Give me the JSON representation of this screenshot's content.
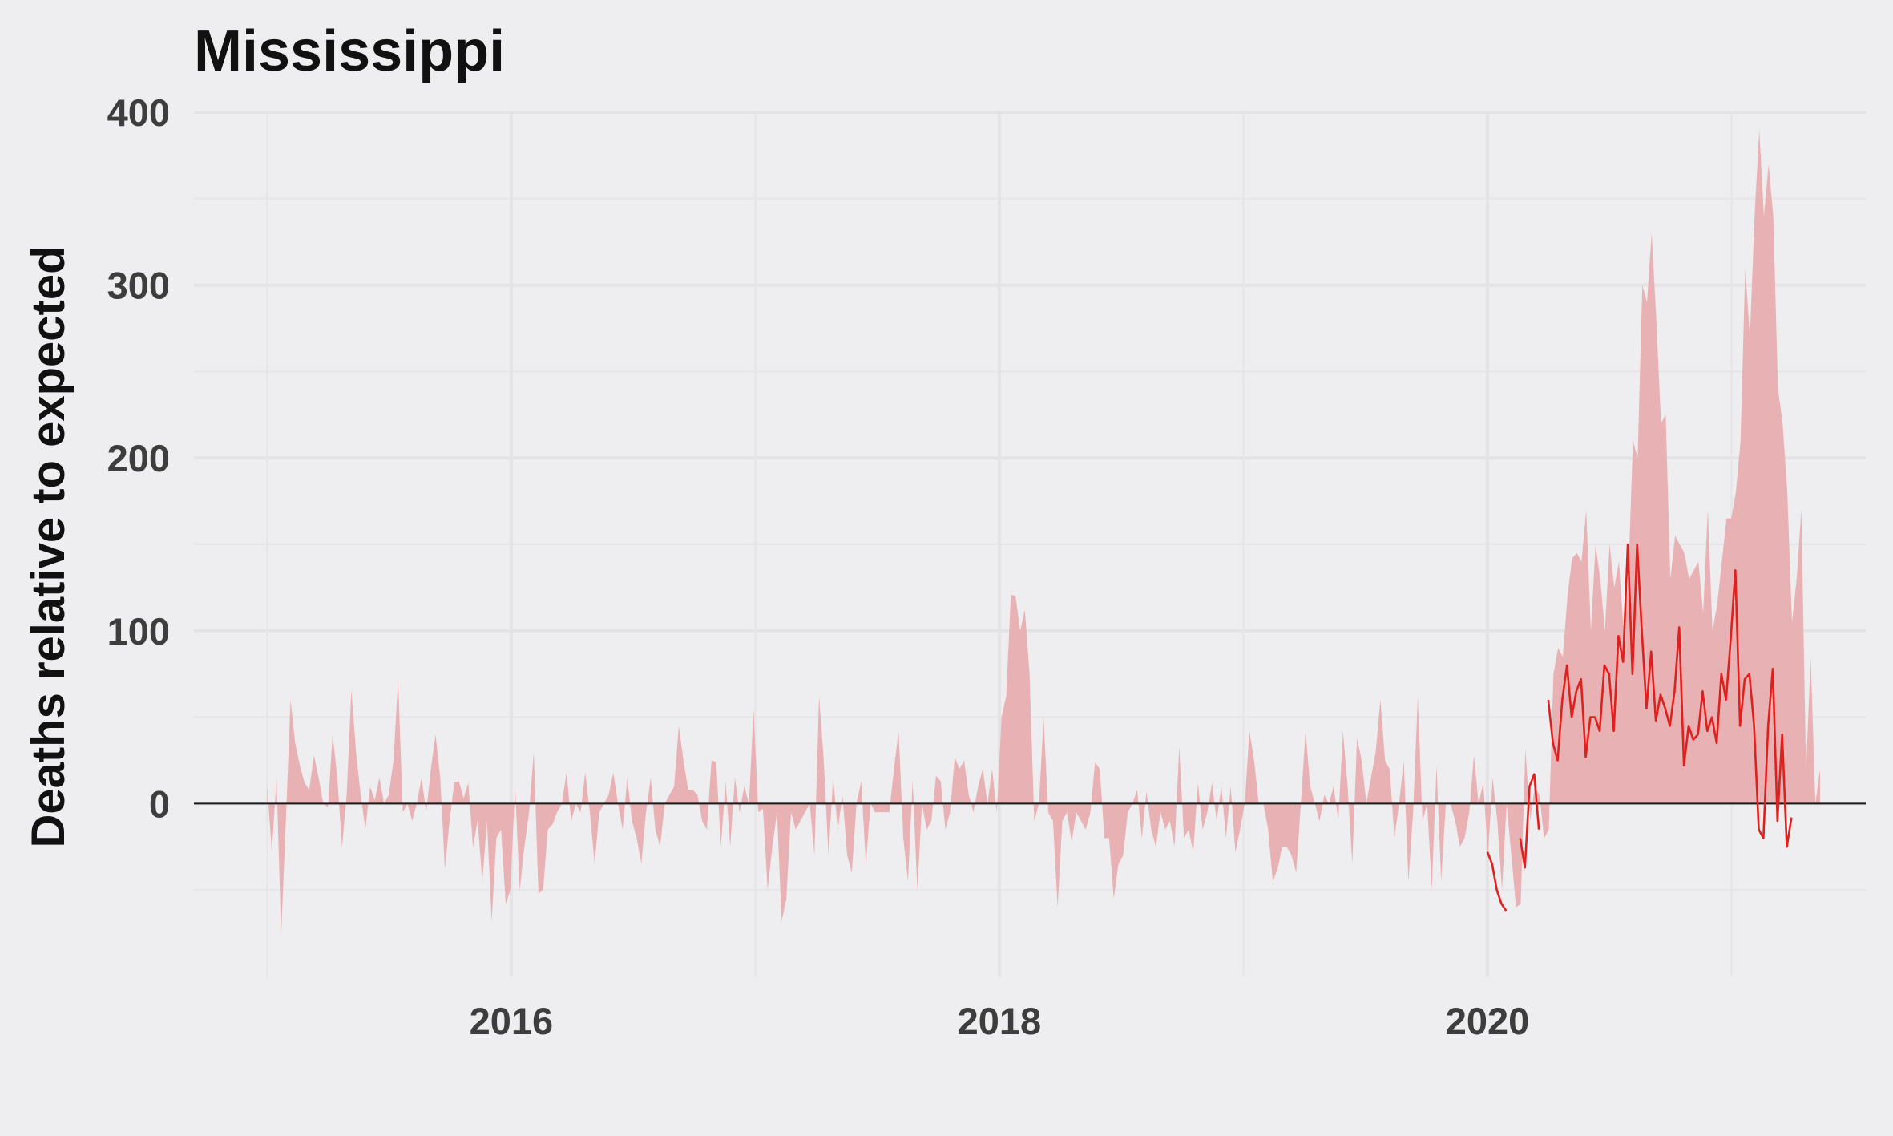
{
  "chart_data": {
    "type": "area",
    "title": "Mississippi",
    "xlabel": "",
    "ylabel": "Deaths relative to expected",
    "x_ticks": [
      "2016",
      "2018",
      "2020"
    ],
    "y_ticks": [
      "0",
      "100",
      "200",
      "300",
      "400"
    ],
    "xlim": [
      2014.7,
      2021.55
    ],
    "ylim": [
      -100,
      400
    ],
    "grid": true,
    "legend": "none",
    "colors": {
      "area": "#e8b2b4",
      "line": "#e0201c",
      "zero": "#1a1a1a"
    },
    "series": [
      {
        "kind": "area",
        "x_start": 2015.0,
        "x_step_years": 0.019165,
        "values": [
          10,
          -28,
          15,
          -76,
          -10,
          60,
          35,
          22,
          12,
          8,
          28,
          15,
          0,
          -2,
          40,
          15,
          -25,
          5,
          66,
          30,
          5,
          -15,
          10,
          2,
          15,
          0,
          5,
          25,
          72,
          -5,
          0,
          -10,
          0,
          15,
          -5,
          20,
          40,
          15,
          -38,
          -10,
          12,
          13,
          3,
          12,
          -25,
          -10,
          -45,
          -10,
          -68,
          -20,
          -15,
          -58,
          -50,
          10,
          -50,
          -25,
          -5,
          30,
          -52,
          -50,
          -15,
          -12,
          -5,
          0,
          18,
          -10,
          0,
          -5,
          18,
          -5,
          -35,
          -5,
          0,
          5,
          18,
          0,
          -15,
          15,
          -10,
          -20,
          -35,
          -5,
          15,
          -15,
          -25,
          0,
          5,
          10,
          45,
          25,
          8,
          8,
          5,
          -10,
          -15,
          25,
          24,
          -25,
          13,
          -25,
          15,
          -5,
          10,
          0,
          55,
          -5,
          -3,
          -50,
          -25,
          -5,
          -68,
          -55,
          -5,
          -15,
          -10,
          -5,
          0,
          -30,
          62,
          25,
          -30,
          15,
          -15,
          5,
          -30,
          -40,
          0,
          13,
          -35,
          0,
          -5,
          -5,
          -5,
          -5,
          20,
          42,
          -20,
          -45,
          13,
          -50,
          0,
          -15,
          -10,
          16,
          13,
          -15,
          -5,
          27,
          20,
          25,
          5,
          -5,
          10,
          20,
          0,
          20,
          -5,
          50,
          62,
          121,
          120,
          100,
          112,
          75,
          -10,
          0,
          50,
          -5,
          -10,
          -60,
          -10,
          -5,
          -22,
          -5,
          -10,
          -15,
          -5,
          24,
          20,
          -20,
          -20,
          -55,
          -35,
          -30,
          -5,
          0,
          8,
          -20,
          7,
          -15,
          -25,
          -5,
          -15,
          -10,
          -25,
          33,
          -20,
          -15,
          -28,
          12,
          -15,
          -5,
          12,
          -10,
          10,
          -20,
          10,
          -28,
          -15,
          0,
          42,
          25,
          0,
          0,
          -15,
          -45,
          -38,
          -25,
          -25,
          -30,
          -40,
          0,
          42,
          10,
          0,
          -10,
          5,
          0,
          10,
          -10,
          42,
          10,
          -35,
          38,
          25,
          0,
          15,
          30,
          60,
          25,
          20,
          -20,
          0,
          25,
          -45,
          -5,
          62,
          -10,
          0,
          -50,
          22,
          -45,
          0,
          0,
          -10,
          -25,
          -20,
          -5,
          28,
          0,
          12,
          -30,
          15,
          -10,
          -50,
          0,
          -30,
          -60,
          -58,
          32,
          -10,
          10,
          5,
          -20,
          -15,
          75,
          90,
          85,
          120,
          142,
          145,
          140,
          170,
          100,
          150,
          130,
          100,
          150,
          125,
          140,
          100,
          130,
          210,
          200,
          300,
          290,
          330,
          280,
          220,
          225,
          130,
          155,
          150,
          145,
          130,
          135,
          140,
          110,
          170,
          100,
          115,
          140,
          165,
          165,
          180,
          210,
          310,
          270,
          340,
          390,
          340,
          370,
          340,
          240,
          220,
          180,
          105,
          130,
          170,
          20,
          85,
          0,
          20
        ]
      },
      {
        "kind": "line",
        "x_start": 2020.0,
        "x_step_years": 0.019165,
        "values": [
          -28,
          -35,
          -50,
          -58,
          -62,
          null,
          null,
          -20,
          -37,
          10,
          17,
          -15,
          null,
          60,
          35,
          25,
          60,
          80,
          50,
          65,
          72,
          27,
          50,
          50,
          42,
          80,
          75,
          42,
          97,
          82,
          150,
          75,
          150,
          100,
          55,
          88,
          48,
          63,
          55,
          45,
          65,
          102,
          22,
          45,
          37,
          40,
          65,
          42,
          50,
          35,
          75,
          60,
          95,
          135,
          45,
          72,
          75,
          45,
          -15,
          -20,
          45,
          78,
          -10,
          40,
          -25,
          -8
        ]
      }
    ]
  }
}
